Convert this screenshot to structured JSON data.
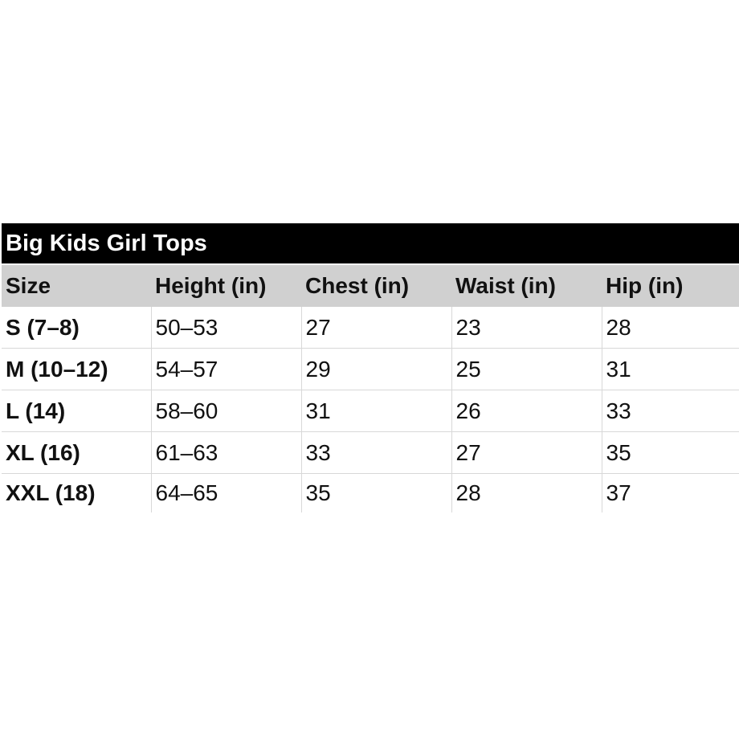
{
  "title": "Big Kids Girl Tops",
  "columns": [
    "Size",
    "Height (in)",
    "Chest (in)",
    "Waist (in)",
    "Hip (in)"
  ],
  "rows": [
    [
      "S (7–8)",
      "50–53",
      "27",
      "23",
      "28"
    ],
    [
      "M (10–12)",
      "54–57",
      "29",
      "25",
      "31"
    ],
    [
      "L (14)",
      "58–60",
      "31",
      "26",
      "33"
    ],
    [
      "XL (16)",
      "61–63",
      "33",
      "27",
      "35"
    ],
    [
      "XXL (18)",
      "64–65",
      "35",
      "28",
      "37"
    ]
  ]
}
